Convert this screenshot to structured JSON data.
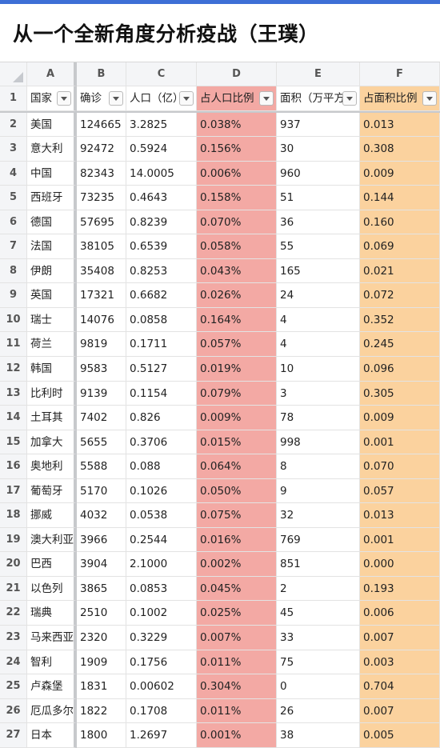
{
  "title": "从一个全新角度分析疫战（王璞）",
  "columns": [
    "A",
    "B",
    "C",
    "D",
    "E",
    "F"
  ],
  "headers": [
    "国家",
    "确诊",
    "人口（亿）",
    "占人口比例",
    "面积（万平方",
    "占面积比例"
  ],
  "colors": {
    "accent": "#3d6fd6",
    "pink": "#f3a9a4",
    "orange": "#fbd29e"
  },
  "rows": [
    {
      "num": "2",
      "cells": [
        "美国",
        "124665",
        "3.2825",
        "0.038%",
        "937",
        "0.013"
      ]
    },
    {
      "num": "3",
      "cells": [
        "意大利",
        "92472",
        "0.5924",
        "0.156%",
        "30",
        "0.308"
      ]
    },
    {
      "num": "4",
      "cells": [
        "中国",
        "82343",
        "14.0005",
        "0.006%",
        "960",
        "0.009"
      ]
    },
    {
      "num": "5",
      "cells": [
        "西班牙",
        "73235",
        "0.4643",
        "0.158%",
        "51",
        "0.144"
      ]
    },
    {
      "num": "6",
      "cells": [
        "德国",
        "57695",
        "0.8239",
        "0.070%",
        "36",
        "0.160"
      ]
    },
    {
      "num": "7",
      "cells": [
        "法国",
        "38105",
        "0.6539",
        "0.058%",
        "55",
        "0.069"
      ]
    },
    {
      "num": "8",
      "cells": [
        "伊朗",
        "35408",
        "0.8253",
        "0.043%",
        "165",
        "0.021"
      ]
    },
    {
      "num": "9",
      "cells": [
        "英国",
        "17321",
        "0.6682",
        "0.026%",
        "24",
        "0.072"
      ]
    },
    {
      "num": "10",
      "cells": [
        "瑞士",
        "14076",
        "0.0858",
        "0.164%",
        "4",
        "0.352"
      ]
    },
    {
      "num": "11",
      "cells": [
        "荷兰",
        "9819",
        "0.1711",
        "0.057%",
        "4",
        "0.245"
      ]
    },
    {
      "num": "12",
      "cells": [
        "韩国",
        "9583",
        "0.5127",
        "0.019%",
        "10",
        "0.096"
      ]
    },
    {
      "num": "13",
      "cells": [
        "比利时",
        "9139",
        "0.1154",
        "0.079%",
        "3",
        "0.305"
      ]
    },
    {
      "num": "14",
      "cells": [
        "土耳其",
        "7402",
        "0.826",
        "0.009%",
        "78",
        "0.009"
      ]
    },
    {
      "num": "15",
      "cells": [
        "加拿大",
        "5655",
        "0.3706",
        "0.015%",
        "998",
        "0.001"
      ]
    },
    {
      "num": "16",
      "cells": [
        "奥地利",
        "5588",
        "0.088",
        "0.064%",
        "8",
        "0.070"
      ]
    },
    {
      "num": "17",
      "cells": [
        "葡萄牙",
        "5170",
        "0.1026",
        "0.050%",
        "9",
        "0.057"
      ]
    },
    {
      "num": "18",
      "cells": [
        "挪威",
        "4032",
        "0.0538",
        "0.075%",
        "32",
        "0.013"
      ]
    },
    {
      "num": "19",
      "cells": [
        "澳大利亚",
        "3966",
        "0.2544",
        "0.016%",
        "769",
        "0.001"
      ]
    },
    {
      "num": "20",
      "cells": [
        "巴西",
        "3904",
        "2.1000",
        "0.002%",
        "851",
        "0.000"
      ]
    },
    {
      "num": "21",
      "cells": [
        "以色列",
        "3865",
        "0.0853",
        "0.045%",
        "2",
        "0.193"
      ]
    },
    {
      "num": "22",
      "cells": [
        "瑞典",
        "2510",
        "0.1002",
        "0.025%",
        "45",
        "0.006"
      ]
    },
    {
      "num": "23",
      "cells": [
        "马来西亚",
        "2320",
        "0.3229",
        "0.007%",
        "33",
        "0.007"
      ]
    },
    {
      "num": "24",
      "cells": [
        "智利",
        "1909",
        "0.1756",
        "0.011%",
        "75",
        "0.003"
      ]
    },
    {
      "num": "25",
      "cells": [
        "卢森堡",
        "1831",
        "0.00602",
        "0.304%",
        "0",
        "0.704"
      ]
    },
    {
      "num": "26",
      "cells": [
        "厄瓜多尔",
        "1822",
        "0.1708",
        "0.011%",
        "26",
        "0.007"
      ]
    },
    {
      "num": "27",
      "cells": [
        "日本",
        "1800",
        "1.2697",
        "0.001%",
        "38",
        "0.005"
      ]
    }
  ]
}
